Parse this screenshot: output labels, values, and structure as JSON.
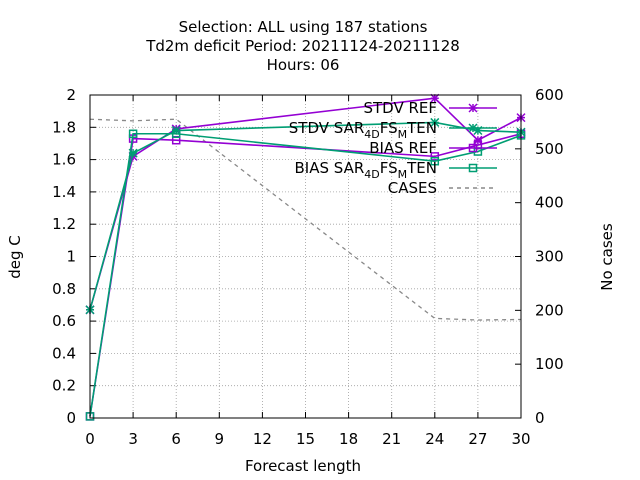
{
  "chart_data": {
    "type": "line",
    "title_lines": [
      "Selection: ALL using   187 stations",
      "Td2m deficit   Period: 20211124-20211128",
      "Hours:  06"
    ],
    "xlabel": "Forecast length",
    "ylabel": "deg C",
    "y2label": "No cases",
    "xlim": [
      0,
      30
    ],
    "ylim": [
      0,
      2
    ],
    "y2lim": [
      0,
      600
    ],
    "xticks": [
      "0",
      "3",
      "6",
      "9",
      "12",
      "15",
      "18",
      "21",
      "24",
      "27",
      "30"
    ],
    "yticks": [
      "0",
      "0.2",
      "0.4",
      "0.6",
      "0.8",
      "1",
      "1.2",
      "1.4",
      "1.6",
      "1.8",
      "2"
    ],
    "y2ticks": [
      "0",
      "100",
      "200",
      "300",
      "400",
      "500",
      "600"
    ],
    "grid": true,
    "legend_position": "top-right",
    "series": [
      {
        "name": "STDV REF",
        "color": "#9400d3",
        "marker": "star",
        "axis": "y",
        "dash": "solid",
        "x": [
          0,
          3,
          6,
          24,
          27,
          30
        ],
        "y": [
          0.67,
          1.62,
          1.79,
          1.98,
          1.72,
          1.86
        ]
      },
      {
        "name": "STDV SAR_{4D}FS_{M}TEN",
        "color": "#009e73",
        "marker": "star",
        "axis": "y",
        "dash": "solid",
        "x": [
          0,
          3,
          6,
          24,
          27,
          30
        ],
        "y": [
          0.67,
          1.64,
          1.78,
          1.83,
          1.78,
          1.77
        ]
      },
      {
        "name": "BIAS REF",
        "color": "#9400d3",
        "marker": "square",
        "axis": "y",
        "dash": "solid",
        "x": [
          0,
          3,
          6,
          24,
          27,
          30
        ],
        "y": [
          0.01,
          1.73,
          1.72,
          1.62,
          1.69,
          1.76
        ]
      },
      {
        "name": "BIAS SAR_{4D}FS_{M}TEN",
        "color": "#009e73",
        "marker": "square",
        "axis": "y",
        "dash": "solid",
        "x": [
          0,
          3,
          6,
          24,
          27,
          30
        ],
        "y": [
          0.01,
          1.76,
          1.76,
          1.59,
          1.65,
          1.75
        ]
      },
      {
        "name": "CASES",
        "color": "#888888",
        "marker": "none",
        "axis": "y2",
        "dash": "dashed",
        "x": [
          0,
          3,
          6,
          24,
          27,
          30
        ],
        "y": [
          555,
          552,
          555,
          185,
          182,
          183
        ]
      }
    ]
  }
}
